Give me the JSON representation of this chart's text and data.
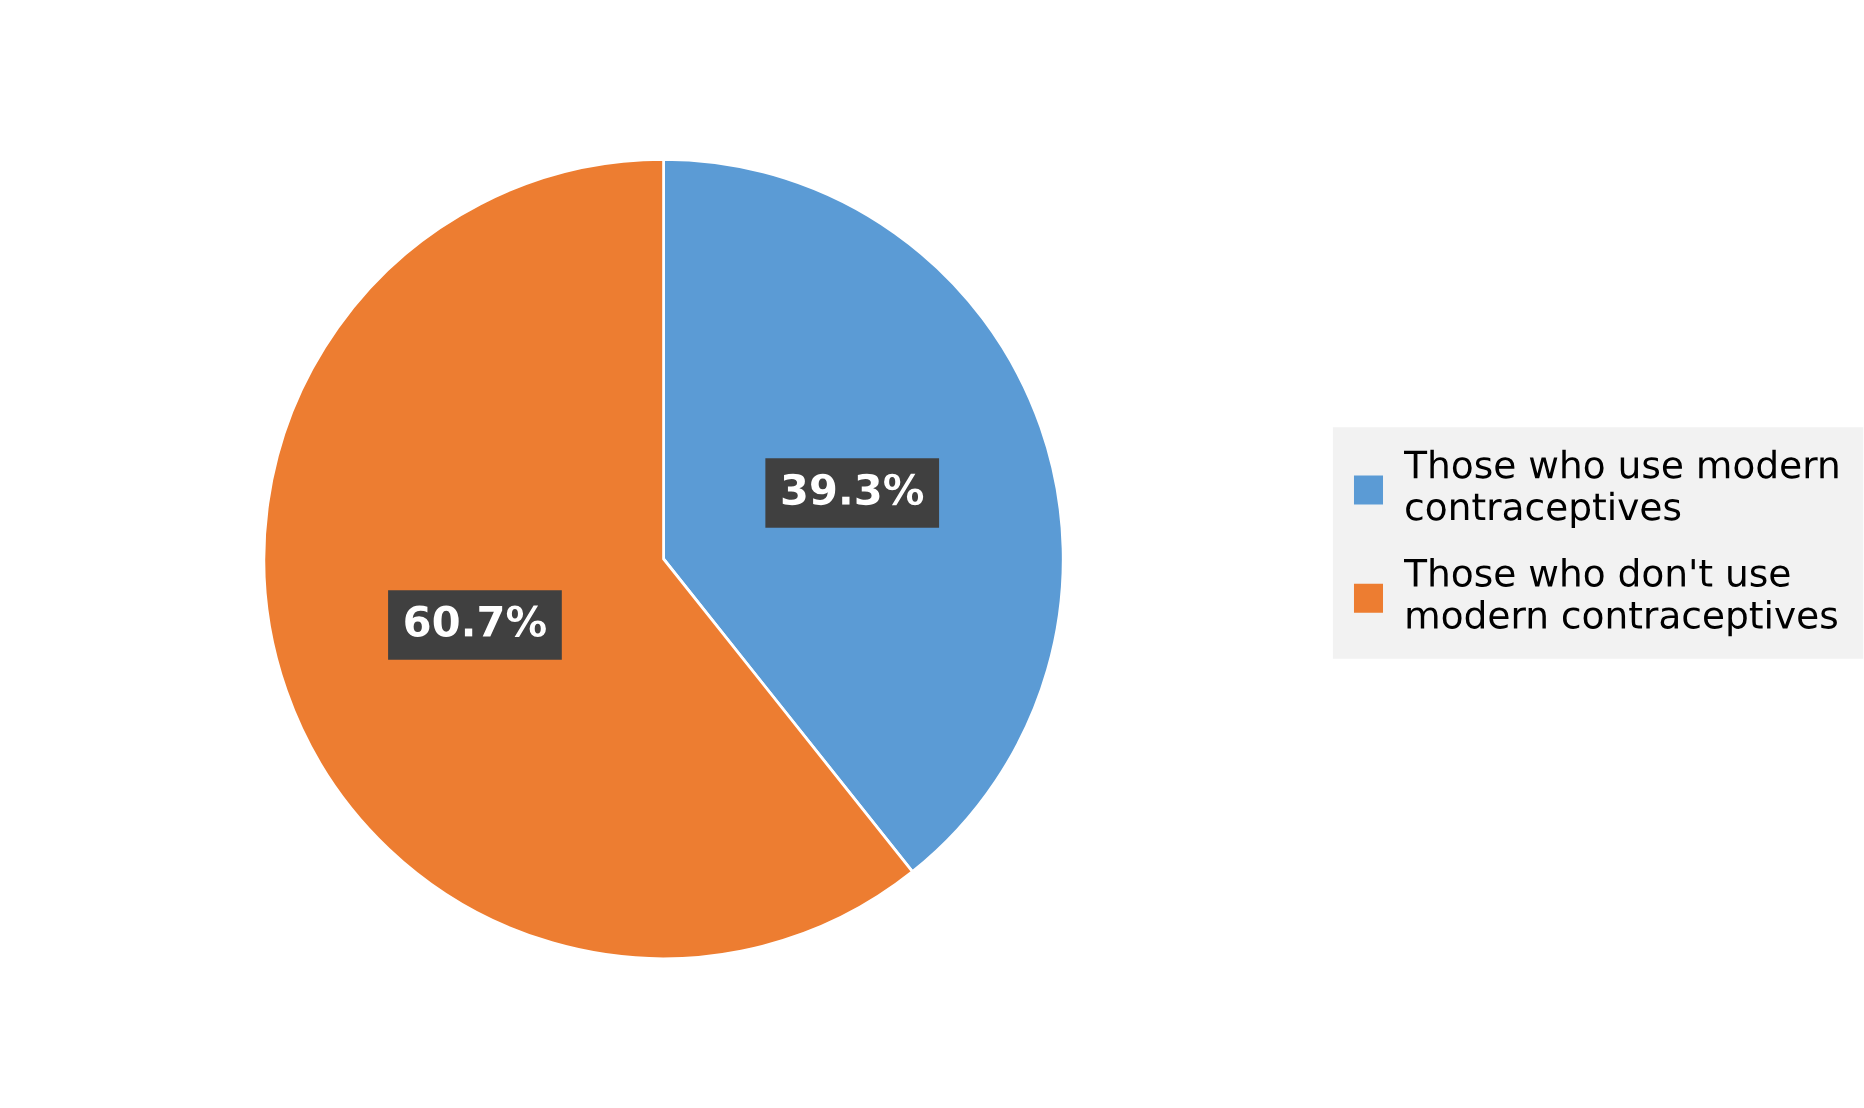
{
  "chart_data": {
    "type": "pie",
    "categories": [
      "Those who use modern contraceptives",
      "Those who don't use modern contraceptives"
    ],
    "values": [
      39.3,
      60.7
    ],
    "colors": [
      "#5b9bd5",
      "#ed7d31"
    ],
    "value_labels": [
      "39.3%",
      "60.7%"
    ],
    "legend": "right"
  }
}
